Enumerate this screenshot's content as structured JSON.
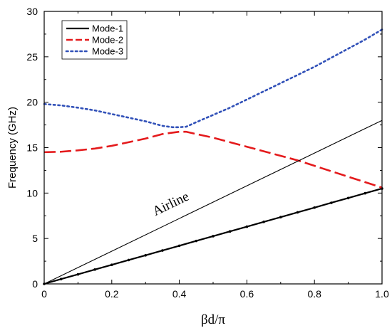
{
  "chart_data": {
    "type": "line",
    "title": "",
    "xlabel": "βd/π",
    "ylabel": "Frequency (GHz)",
    "xlim": [
      0,
      1.0
    ],
    "ylim": [
      0,
      30
    ],
    "xticks": [
      0,
      0.2,
      0.4,
      0.6,
      0.8,
      1.0
    ],
    "xtick_labels": [
      "0",
      "0.2",
      "0.4",
      "0.6",
      "0.8",
      "1.0"
    ],
    "yticks": [
      0,
      5,
      10,
      15,
      20,
      25,
      30
    ],
    "ytick_labels": [
      "0",
      "5",
      "10",
      "15",
      "20",
      "25",
      "30"
    ],
    "grid": false,
    "legend_position": "top-left",
    "series": [
      {
        "name": "Mode-1",
        "color": "#000000",
        "style": "solid-with-dots",
        "x": [
          0,
          0.05,
          0.1,
          0.15,
          0.2,
          0.25,
          0.3,
          0.35,
          0.4,
          0.45,
          0.5,
          0.55,
          0.6,
          0.65,
          0.7,
          0.75,
          0.8,
          0.85,
          0.9,
          0.95,
          1.0
        ],
        "y": [
          0,
          0.53,
          1.05,
          1.58,
          2.1,
          2.63,
          3.15,
          3.68,
          4.2,
          4.73,
          5.25,
          5.78,
          6.3,
          6.83,
          7.35,
          7.88,
          8.4,
          8.93,
          9.45,
          9.98,
          10.5
        ]
      },
      {
        "name": "Mode-2",
        "color": "#e41a1c",
        "style": "dash",
        "x": [
          0,
          0.05,
          0.1,
          0.15,
          0.2,
          0.25,
          0.3,
          0.35,
          0.4,
          0.42,
          0.45,
          0.5,
          0.55,
          0.6,
          0.65,
          0.7,
          0.75,
          0.8,
          0.85,
          0.9,
          0.95,
          1.0
        ],
        "y": [
          14.5,
          14.55,
          14.7,
          14.9,
          15.2,
          15.6,
          16.0,
          16.5,
          16.75,
          16.75,
          16.5,
          16.1,
          15.6,
          15.1,
          14.6,
          14.1,
          13.6,
          13.0,
          12.4,
          11.8,
          11.2,
          10.6
        ]
      },
      {
        "name": "Mode-3",
        "color": "#3050b8",
        "style": "dot",
        "x": [
          0,
          0.05,
          0.1,
          0.15,
          0.2,
          0.25,
          0.3,
          0.35,
          0.38,
          0.4,
          0.42,
          0.45,
          0.5,
          0.55,
          0.6,
          0.65,
          0.7,
          0.75,
          0.8,
          0.85,
          0.9,
          0.95,
          1.0
        ],
        "y": [
          19.8,
          19.65,
          19.4,
          19.1,
          18.7,
          18.3,
          17.9,
          17.4,
          17.25,
          17.25,
          17.3,
          17.8,
          18.6,
          19.4,
          20.3,
          21.2,
          22.1,
          23.0,
          23.9,
          24.9,
          25.9,
          26.9,
          28.0
        ]
      },
      {
        "name": "Airline",
        "color": "#000000",
        "style": "thin-solid",
        "x": [
          0,
          1.0
        ],
        "y": [
          0,
          18
        ]
      }
    ],
    "annotations": [
      {
        "text": "Airline",
        "x": 0.38,
        "y": 8.4
      }
    ]
  }
}
